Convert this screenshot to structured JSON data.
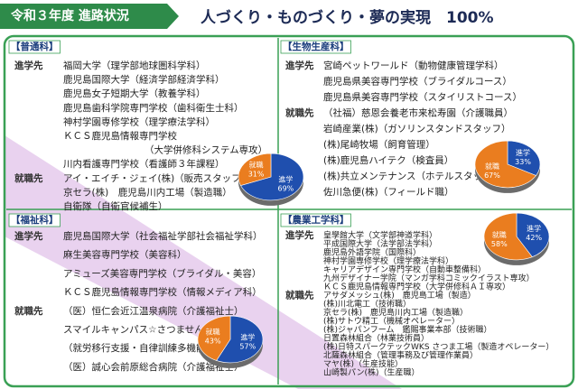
{
  "header": {
    "tab": "令和３年度 進路状況",
    "title": "人づくり・ものづくり・夢の実現　100%"
  },
  "sections": [
    {
      "heading": "【普通科】",
      "groups": [
        {
          "label": "進学先",
          "items": [
            "福岡大学（理学部地球圏科学科）",
            "鹿児島国際大学（経済学部経済学科）",
            "鹿児島女子短期大学（教養学科）",
            "鹿児島歯科学院専門学校（歯科衛生士科）",
            "神村学園専修学校（理学療法学科）",
            "ＫＣＳ鹿児島情報専門学校",
            "（大学併修科システム専攻）",
            "川内看護専門学校（看護師３年課程）"
          ]
        },
        {
          "label": "就職先",
          "items": [
            "アイ・エイチ・ジェイ(株)（販売スタッフ）",
            "京セラ(株)　鹿児島川内工場（製造職）",
            "自衛隊（自衛官候補生）"
          ]
        }
      ],
      "pie": {
        "labels": [
          "進学",
          "就職"
        ],
        "values": [
          69,
          31
        ],
        "value_labels": [
          "69%",
          "31%"
        ]
      }
    },
    {
      "heading": "【生物生産科】",
      "groups": [
        {
          "label": "進学先",
          "items": [
            "宮崎ペットワールド（動物健康管理学科）",
            "鹿児島県美容専門学校（ブライダルコース）",
            "鹿児島県美容専門学校（スタイリストコース）"
          ]
        },
        {
          "label": "就職先",
          "items": [
            "（社福）慈恩会養老市来松寿園（介護職員）",
            "岩崎産業(株)（ガソリンスタンドスタッフ）",
            "(株)尾崎牧場（飼育管理）",
            "(株)鹿児島ハイテク（検査員）",
            "(株)共立メンテナンス（ホテルスタッフ）",
            "佐川急便(株)（フィールド職）"
          ]
        }
      ],
      "pie": {
        "labels": [
          "進学",
          "就職"
        ],
        "values": [
          33,
          67
        ],
        "value_labels": [
          "33%",
          "67%"
        ]
      }
    },
    {
      "heading": "【福祉科】",
      "groups": [
        {
          "label": "進学先",
          "items": [
            "鹿児島国際大学（社会福祉学部社会福祉学科）",
            "麻生美容専門学校（美容科）",
            "アミューズ美容専門学校（ブライダル・美容）",
            "ＫＣＳ鹿児島情報専門学校（情報メディア科）"
          ]
        },
        {
          "label": "就職先",
          "items": [
            "（医）恒仁会近江温泉病院（介護福祉士）",
            "スマイルキャンパス☆さつませんだい",
            "（就労移行支援・自律訓練多機能型事業所）",
            "（医）誠心会前原総合病院（介護福祉士）"
          ]
        }
      ],
      "pie": {
        "labels": [
          "進学",
          "就職"
        ],
        "values": [
          57,
          43
        ],
        "value_labels": [
          "57%",
          "43%"
        ]
      }
    },
    {
      "heading": "【農業工学科】",
      "groups": [
        {
          "label": "進学先",
          "items": [
            "皇學館大学（文学部神道学科）",
            "平成国際大学（法学部法学科）",
            "鹿児島外語学院（国際科）",
            "神村学園専修学校（理学療法学科）",
            "キャリアデザイン専門学校（自動車整備科）",
            "九州デザイナー学院（マンガ学科コミックイラスト専攻）",
            "ＫＣＳ鹿児島情報専門学校（大学併修科ＡＩ専攻）"
          ]
        },
        {
          "label": "就職先",
          "items": [
            "アサダメッシュ(株)　鹿児島工場（製造）",
            "(株)川北電工（技術職）",
            "京セラ(株)　鹿児島川内工場（製造職）",
            "(株)サトウ精工（機械オペレーター）",
            "(株)ジャパンフーム　鑑賜事業本部（技術職）",
            "日置森林組合（林業技術員）",
            "(株)日特スパークテックWKS さつま工場（製造オペレーター）",
            "北薩森林組合（管理事務及び管理作業員）",
            "マヤ(株)（生産技能）",
            "山崎製パン(株)（生産職）"
          ]
        }
      ],
      "pie": {
        "labels": [
          "進学",
          "就職"
        ],
        "values": [
          42,
          58
        ],
        "value_labels": [
          "42%",
          "58%"
        ]
      }
    }
  ]
}
